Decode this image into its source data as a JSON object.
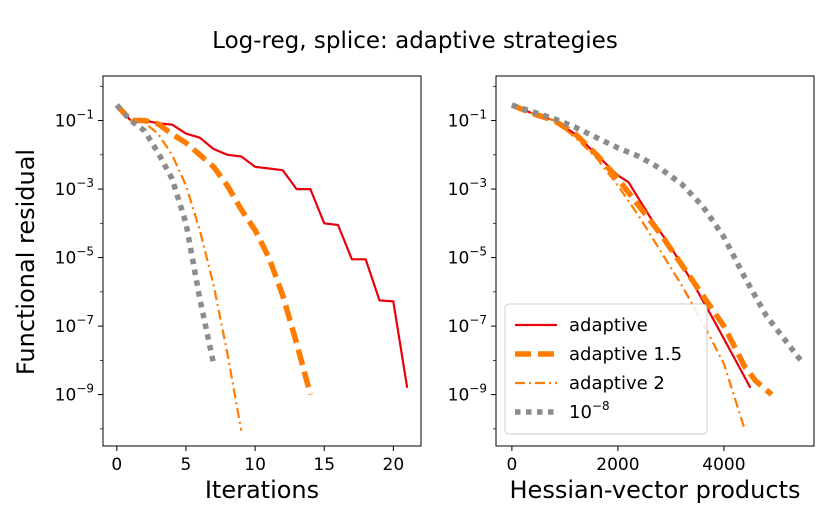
{
  "chart_data": {
    "type": "line",
    "title": "Log-reg, splice: adaptive strategies",
    "ylabel": "Functional residual",
    "yscale": "log",
    "legend": {
      "placement": "lower-left",
      "entries": [
        {
          "label": "adaptive",
          "color": "#e8000b",
          "style": "solid"
        },
        {
          "label": "adaptive 1.5",
          "color": "#ff7c00",
          "style": "dashed"
        },
        {
          "label": "adaptive 2",
          "color": "#ff7c00",
          "style": "dashdot"
        },
        {
          "label_base": "10",
          "label_exp": "−8",
          "color": "#8c8c8c",
          "style": "dotted"
        }
      ]
    },
    "panels": [
      {
        "xlabel": "Iterations",
        "xlim": [
          -1,
          22
        ],
        "ylim_exp": [
          -10.5,
          0.3
        ],
        "xticks": [
          0,
          5,
          10,
          15,
          20
        ],
        "yticks_exp": [
          -1,
          -3,
          -5,
          -7,
          -9
        ],
        "series": [
          {
            "name": "adaptive",
            "x": [
              0,
              1,
              2,
              3,
              4,
              5,
              6,
              7,
              8,
              9,
              10,
              11,
              12,
              13,
              14,
              15,
              16,
              17,
              18,
              19,
              20,
              21
            ],
            "y_log10": [
              -0.55,
              -1.0,
              -1.0,
              -1.08,
              -1.12,
              -1.38,
              -1.5,
              -1.83,
              -2.0,
              -2.05,
              -2.35,
              -2.4,
              -2.45,
              -3.0,
              -3.0,
              -4.0,
              -4.05,
              -5.05,
              -5.05,
              -6.25,
              -6.28,
              -8.8
            ]
          },
          {
            "name": "adaptive 1.5",
            "x": [
              0,
              1,
              2,
              3,
              4,
              5,
              6,
              7,
              8,
              9,
              10,
              11,
              12,
              13,
              14
            ],
            "y_log10": [
              -0.55,
              -1.0,
              -1.0,
              -1.1,
              -1.4,
              -1.65,
              -2.0,
              -2.35,
              -2.9,
              -3.6,
              -4.2,
              -5.0,
              -6.1,
              -7.5,
              -9.0
            ]
          },
          {
            "name": "adaptive 2",
            "x": [
              0,
              1,
              2,
              3,
              4,
              5,
              6,
              7,
              8,
              9
            ],
            "y_log10": [
              -0.55,
              -1.0,
              -1.05,
              -1.4,
              -2.0,
              -2.9,
              -4.2,
              -5.8,
              -7.8,
              -10.05
            ]
          },
          {
            "name": "1e-8",
            "x": [
              0,
              1,
              2,
              3,
              4,
              5,
              6,
              7
            ],
            "y_log10": [
              -0.55,
              -1.0,
              -1.3,
              -1.95,
              -2.7,
              -4.0,
              -6.2,
              -8.1
            ]
          }
        ]
      },
      {
        "xlabel": "Hessian-vector products",
        "xlim": [
          -300,
          5700
        ],
        "ylim_exp": [
          -10.5,
          0.3
        ],
        "xticks": [
          0,
          2000,
          4000
        ],
        "yticks_exp": [
          -1,
          -3,
          -5,
          -7,
          -9
        ],
        "series": [
          {
            "name": "adaptive",
            "x": [
              0,
              400,
              800,
              1200,
              1600,
              2000,
              2200,
              2600,
              3000,
              3400,
              3800,
              4150,
              4500
            ],
            "y_log10": [
              -0.55,
              -0.8,
              -1.0,
              -1.4,
              -2.0,
              -2.6,
              -2.8,
              -3.8,
              -4.7,
              -5.7,
              -6.8,
              -7.8,
              -8.8
            ]
          },
          {
            "name": "adaptive 1.5",
            "x": [
              0,
              400,
              800,
              1200,
              1600,
              2000,
              2400,
              2800,
              3200,
              3600,
              4000,
              4400,
              4600,
              4900
            ],
            "y_log10": [
              -0.55,
              -0.8,
              -1.0,
              -1.4,
              -2.0,
              -2.7,
              -3.5,
              -4.3,
              -5.2,
              -6.1,
              -7.0,
              -8.2,
              -8.6,
              -9.0
            ]
          },
          {
            "name": "adaptive 2",
            "x": [
              0,
              400,
              800,
              1200,
              1600,
              2000,
              2400,
              2800,
              3200,
              3600,
              4000,
              4400
            ],
            "y_log10": [
              -0.55,
              -0.8,
              -1.0,
              -1.5,
              -2.1,
              -2.9,
              -3.8,
              -4.8,
              -5.8,
              -6.9,
              -8.1,
              -10.05
            ]
          },
          {
            "name": "1e-8",
            "x": [
              0,
              400,
              800,
              1200,
              1600,
              2000,
              2400,
              2800,
              3200,
              3600,
              4000,
              4400,
              4800,
              5200,
              5450
            ],
            "y_log10": [
              -0.55,
              -0.75,
              -0.95,
              -1.2,
              -1.5,
              -1.8,
              -2.05,
              -2.4,
              -2.85,
              -3.5,
              -4.4,
              -5.6,
              -6.7,
              -7.5,
              -8.0
            ]
          }
        ]
      }
    ]
  }
}
